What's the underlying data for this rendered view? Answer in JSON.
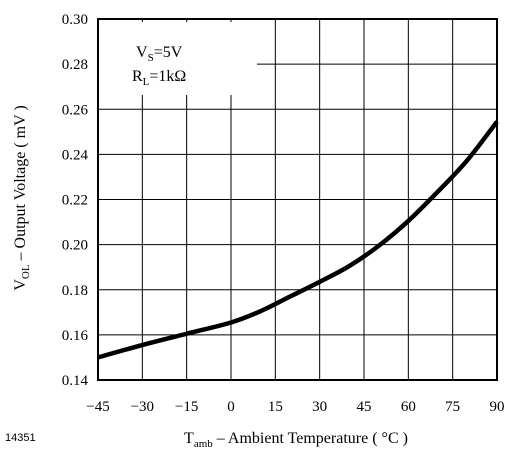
{
  "chart_data": {
    "type": "line",
    "x": [
      -45,
      -30,
      -15,
      0,
      10,
      20,
      30,
      40,
      50,
      60,
      70,
      80,
      90
    ],
    "series": [
      {
        "values": [
          0.15,
          0.1555,
          0.1605,
          0.1655,
          0.1705,
          0.177,
          0.1835,
          0.1905,
          0.1995,
          0.2105,
          0.2235,
          0.2375,
          0.2545
        ]
      }
    ],
    "xlim": [
      -45,
      90
    ],
    "ylim": [
      0.14,
      0.3
    ],
    "xticks": [
      "−45",
      "−30",
      "−15",
      "0",
      "15",
      "30",
      "45",
      "60",
      "75",
      "90"
    ],
    "yticks": [
      "0.14",
      "0.16",
      "0.18",
      "0.20",
      "0.22",
      "0.24",
      "0.26",
      "0.28",
      "0.30"
    ],
    "xlabel": {
      "main": "T",
      "sub": "amb",
      "rest": " – Ambient Temperature ( °C )"
    },
    "ylabel": {
      "main": "V",
      "sub": "OL",
      "rest": " – Output Voltage  ( mV )"
    },
    "annotation": {
      "line1": {
        "main": "V",
        "sub": "S",
        "rest": "=5V"
      },
      "line2": {
        "main": "R",
        "sub": "L",
        "rest": "=1kΩ"
      }
    },
    "figure_id": "14351",
    "grid": true,
    "line_color": "#000000"
  }
}
